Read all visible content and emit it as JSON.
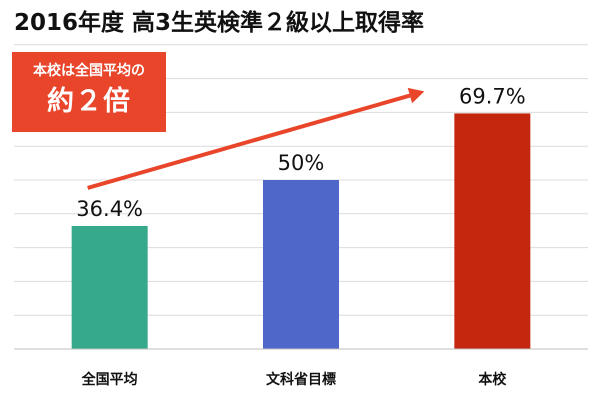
{
  "title": "2016年度 高3生英検準２級以上取得率",
  "callout": {
    "line1": "本校は全国平均の",
    "line2": "約２倍",
    "color": "#e8452a"
  },
  "chart_data": {
    "type": "bar",
    "title": "2016年度 高3生英検準２級以上取得率",
    "xlabel": "",
    "ylabel": "",
    "categories": [
      "全国平均",
      "文科省目標",
      "本校"
    ],
    "values": [
      36.4,
      50,
      69.7
    ],
    "data_labels": [
      "36.4%",
      "50%",
      "69.7%"
    ],
    "colors": [
      "#35a98a",
      "#4e67c8",
      "#c4260e"
    ],
    "ylim": [
      0,
      100
    ],
    "grid": true,
    "legend": "none",
    "trend_arrow_color": "#e8452a"
  }
}
